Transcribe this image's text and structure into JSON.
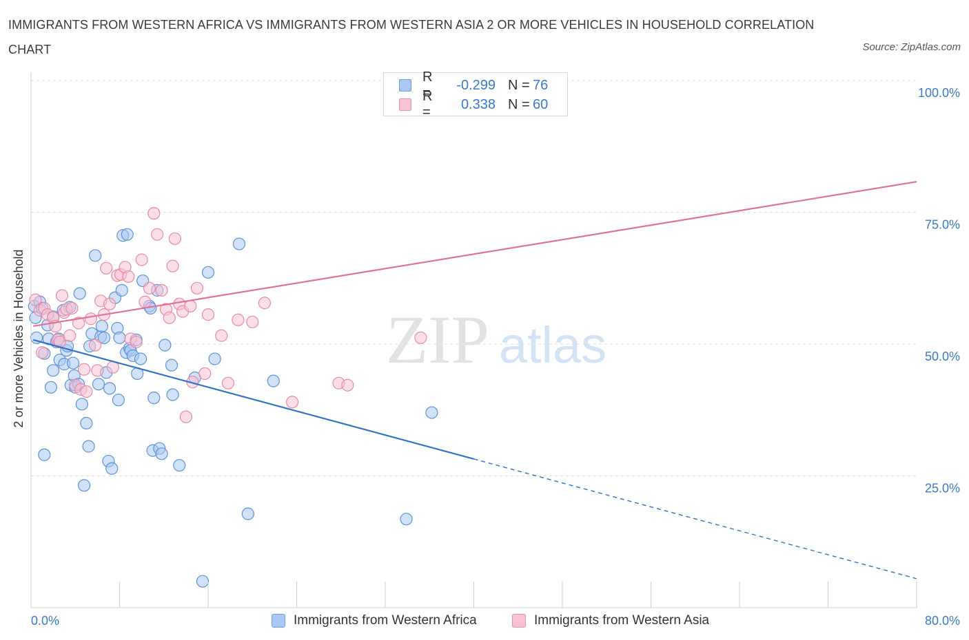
{
  "header": {
    "title": "IMMIGRANTS FROM WESTERN AFRICA VS IMMIGRANTS FROM WESTERN ASIA 2 OR MORE VEHICLES IN HOUSEHOLD CORRELATION CHART",
    "source": "Source: ZipAtlas.com"
  },
  "watermark": {
    "zip": "ZIP",
    "atlas": "atlas"
  },
  "stats_legend": {
    "rows": [
      {
        "r_label": "R =",
        "r_value": "-0.299",
        "n_label": "N =",
        "n_value": "76",
        "color": "#a9c9f2",
        "border": "#6f9fdc"
      },
      {
        "r_label": "R =",
        "r_value": "0.338",
        "n_label": "N =",
        "n_value": "60",
        "color": "#f7c3d4",
        "border": "#ea8fad"
      }
    ]
  },
  "colors": {
    "blue_fill": "#a9c9f2",
    "blue_stroke": "#5d93d6",
    "blue_line": "#2f72c8",
    "pink_fill": "#f7c3d4",
    "pink_stroke": "#e88aa8",
    "pink_line": "#e0729a",
    "axis_text": "#3a78c9",
    "grid": "#dcdcdc"
  },
  "chart_data": {
    "type": "scatter",
    "title": "IMMIGRANTS FROM WESTERN AFRICA VS IMMIGRANTS FROM WESTERN ASIA 2 OR MORE VEHICLES IN HOUSEHOLD CORRELATION CHART",
    "xlabel": "",
    "ylabel": "2 or more Vehicles in Household",
    "xlim": [
      0,
      80
    ],
    "ylim": [
      0,
      100
    ],
    "x_tick_labels": [
      "0.0%",
      "80.0%"
    ],
    "y_ticks": [
      25,
      50,
      75,
      100
    ],
    "y_tick_labels": [
      "25.0%",
      "50.0%",
      "75.0%",
      "100.0%"
    ],
    "grid": true,
    "legend": [
      "Immigrants from Western Africa",
      "Immigrants from Western Asia"
    ],
    "legend_placement": "bottom-center",
    "series": [
      {
        "name": "Immigrants from Western Africa",
        "r": -0.299,
        "n": 76,
        "trend": {
          "x0": 0.2,
          "y0": 50.8,
          "x1": 40.0,
          "y1": 28.2,
          "x_dashed_end": 80.0,
          "y_dashed_end": 5.5
        },
        "points": [
          [
            0.3,
            57.2
          ],
          [
            0.4,
            55.0
          ],
          [
            0.5,
            51.2
          ],
          [
            0.8,
            58.0
          ],
          [
            1.0,
            56.8
          ],
          [
            1.2,
            48.2
          ],
          [
            1.2,
            29.0
          ],
          [
            1.5,
            53.6
          ],
          [
            1.6,
            51.0
          ],
          [
            1.8,
            41.8
          ],
          [
            2.0,
            45.0
          ],
          [
            2.0,
            55.2
          ],
          [
            2.3,
            50.4
          ],
          [
            2.5,
            51.0
          ],
          [
            2.6,
            47.0
          ],
          [
            2.9,
            56.4
          ],
          [
            3.0,
            46.2
          ],
          [
            3.2,
            48.8
          ],
          [
            3.3,
            49.6
          ],
          [
            3.5,
            57.0
          ],
          [
            3.6,
            42.2
          ],
          [
            3.8,
            46.4
          ],
          [
            3.9,
            44.0
          ],
          [
            4.0,
            41.8
          ],
          [
            4.3,
            42.4
          ],
          [
            4.4,
            59.6
          ],
          [
            4.6,
            38.6
          ],
          [
            4.8,
            23.2
          ],
          [
            5.0,
            35.0
          ],
          [
            5.2,
            30.6
          ],
          [
            5.3,
            49.6
          ],
          [
            5.5,
            52.0
          ],
          [
            5.8,
            66.8
          ],
          [
            6.1,
            42.4
          ],
          [
            6.3,
            51.4
          ],
          [
            6.4,
            53.4
          ],
          [
            6.6,
            51.2
          ],
          [
            6.8,
            44.6
          ],
          [
            7.0,
            27.8
          ],
          [
            7.1,
            41.6
          ],
          [
            7.3,
            26.4
          ],
          [
            7.6,
            58.8
          ],
          [
            7.8,
            53.0
          ],
          [
            7.9,
            39.4
          ],
          [
            8.0,
            51.2
          ],
          [
            8.2,
            60.2
          ],
          [
            8.3,
            70.6
          ],
          [
            8.6,
            48.4
          ],
          [
            8.7,
            70.8
          ],
          [
            8.9,
            49.2
          ],
          [
            9.0,
            48.8
          ],
          [
            9.2,
            47.8
          ],
          [
            9.5,
            50.8
          ],
          [
            9.6,
            44.4
          ],
          [
            9.9,
            47.2
          ],
          [
            10.1,
            62.0
          ],
          [
            10.7,
            57.2
          ],
          [
            10.8,
            56.8
          ],
          [
            11.1,
            39.8
          ],
          [
            11.0,
            29.8
          ],
          [
            11.4,
            60.2
          ],
          [
            11.6,
            30.2
          ],
          [
            11.8,
            29.2
          ],
          [
            12.1,
            49.8
          ],
          [
            12.7,
            46.0
          ],
          [
            12.8,
            40.4
          ],
          [
            13.4,
            27.0
          ],
          [
            14.8,
            43.6
          ],
          [
            15.5,
            5.0
          ],
          [
            16.0,
            63.6
          ],
          [
            16.6,
            47.2
          ],
          [
            18.8,
            69.0
          ],
          [
            19.6,
            17.8
          ],
          [
            21.9,
            43.0
          ],
          [
            33.9,
            16.8
          ],
          [
            36.2,
            37.0
          ]
        ]
      },
      {
        "name": "Immigrants from Western Asia",
        "r": 0.338,
        "n": 60,
        "trend": {
          "x0": 0.2,
          "y0": 53.4,
          "x1": 80.0,
          "y1": 80.8
        },
        "points": [
          [
            0.4,
            58.4
          ],
          [
            0.8,
            56.4
          ],
          [
            1.0,
            48.4
          ],
          [
            1.2,
            56.8
          ],
          [
            1.5,
            55.6
          ],
          [
            2.0,
            55.0
          ],
          [
            2.2,
            53.4
          ],
          [
            2.4,
            50.8
          ],
          [
            2.6,
            50.4
          ],
          [
            2.8,
            59.2
          ],
          [
            3.0,
            56.0
          ],
          [
            3.2,
            56.6
          ],
          [
            3.5,
            51.6
          ],
          [
            3.7,
            56.8
          ],
          [
            4.0,
            42.2
          ],
          [
            4.3,
            54.0
          ],
          [
            4.5,
            41.4
          ],
          [
            4.8,
            45.2
          ],
          [
            5.0,
            41.0
          ],
          [
            5.4,
            54.8
          ],
          [
            5.8,
            49.8
          ],
          [
            6.0,
            45.0
          ],
          [
            6.3,
            58.2
          ],
          [
            6.6,
            55.6
          ],
          [
            6.8,
            64.4
          ],
          [
            7.1,
            57.6
          ],
          [
            7.4,
            45.6
          ],
          [
            7.8,
            63.0
          ],
          [
            8.1,
            63.2
          ],
          [
            8.5,
            64.6
          ],
          [
            8.8,
            62.8
          ],
          [
            9.0,
            51.0
          ],
          [
            9.5,
            50.4
          ],
          [
            10.0,
            66.0
          ],
          [
            10.3,
            58.0
          ],
          [
            10.7,
            60.6
          ],
          [
            11.1,
            74.8
          ],
          [
            11.4,
            70.8
          ],
          [
            11.8,
            60.2
          ],
          [
            12.2,
            56.6
          ],
          [
            12.5,
            55.0
          ],
          [
            12.8,
            64.8
          ],
          [
            13.0,
            70.0
          ],
          [
            13.4,
            57.6
          ],
          [
            13.7,
            56.2
          ],
          [
            14.0,
            36.2
          ],
          [
            14.4,
            57.2
          ],
          [
            14.6,
            42.8
          ],
          [
            15.0,
            60.6
          ],
          [
            15.7,
            44.4
          ],
          [
            16.0,
            55.6
          ],
          [
            17.2,
            51.6
          ],
          [
            17.8,
            42.6
          ],
          [
            18.7,
            54.6
          ],
          [
            20.0,
            54.2
          ],
          [
            21.1,
            57.8
          ],
          [
            23.6,
            39.0
          ],
          [
            27.8,
            42.6
          ],
          [
            28.6,
            42.2
          ],
          [
            35.2,
            51.2
          ]
        ]
      }
    ]
  }
}
